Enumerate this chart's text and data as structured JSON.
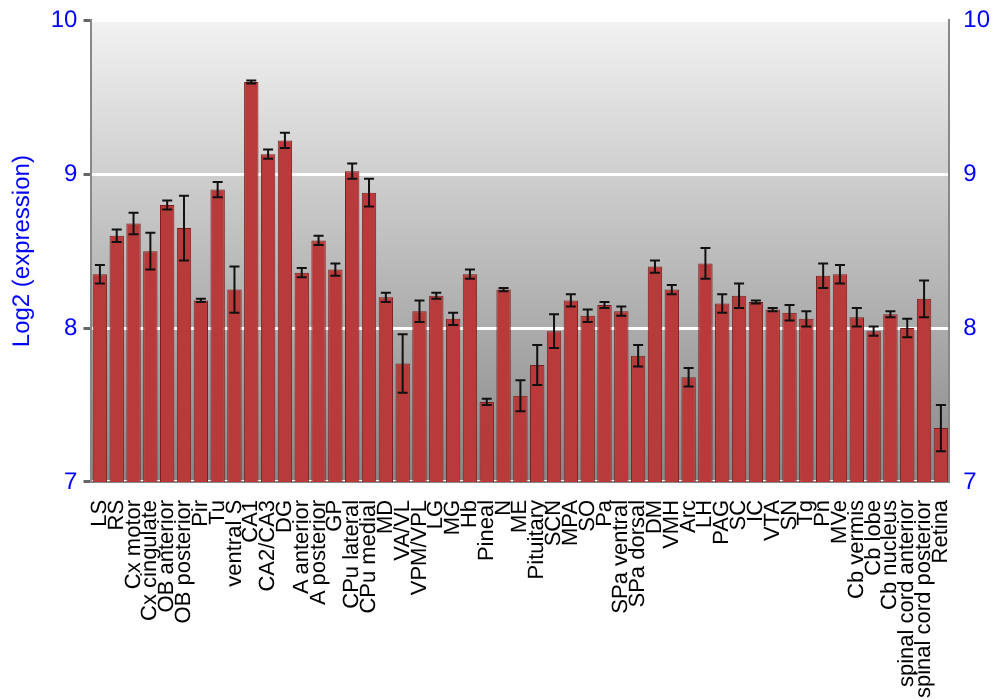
{
  "chart_data": {
    "type": "bar",
    "ylabel": "Log2 (expression)",
    "categories": [
      "LS",
      "RS",
      "Cx motor",
      "Cx cingulate",
      "OB anterior",
      "OB posterior",
      "Pir",
      "Tu",
      "ventral S",
      "CA1",
      "CA2/CA3",
      "DG",
      "A anterior",
      "A posterior",
      "GP",
      "CPu lateral",
      "CPu medial",
      "MD",
      "VA/VL",
      "VPM/VPL",
      "LG",
      "MG",
      "Hb",
      "Pineal",
      "N",
      "ME",
      "Pituitary",
      "SCN",
      "MPA",
      "SO",
      "Pa",
      "SPa ventral",
      "SPa dorsal",
      "DM",
      "VMH",
      "Arc",
      "LH",
      "PAG",
      "SC",
      "IC",
      "VTA",
      "SN",
      "Tg",
      "Pn",
      "MVe",
      "Cb vermis",
      "Cb lobe",
      "Cb nucleus",
      "spinal cord anterior",
      "spinal cord posterior",
      "Retina"
    ],
    "values": [
      8.35,
      8.6,
      8.68,
      8.5,
      8.8,
      8.65,
      8.18,
      8.9,
      8.25,
      9.6,
      9.13,
      9.22,
      8.36,
      8.57,
      8.38,
      9.02,
      8.88,
      8.2,
      7.77,
      8.11,
      8.21,
      8.06,
      8.35,
      7.52,
      8.25,
      7.56,
      7.76,
      7.98,
      8.18,
      8.08,
      8.15,
      8.11,
      7.82,
      8.4,
      8.25,
      7.68,
      8.42,
      8.16,
      8.21,
      8.17,
      8.12,
      8.1,
      8.06,
      8.34,
      8.35,
      8.07,
      7.98,
      8.09,
      8.0,
      8.19,
      7.35
    ],
    "errors": [
      0.06,
      0.04,
      0.07,
      0.12,
      0.03,
      0.21,
      0.01,
      0.05,
      0.15,
      0.01,
      0.03,
      0.05,
      0.03,
      0.03,
      0.04,
      0.05,
      0.09,
      0.03,
      0.19,
      0.07,
      0.02,
      0.04,
      0.03,
      0.02,
      0.01,
      0.1,
      0.13,
      0.11,
      0.04,
      0.04,
      0.02,
      0.03,
      0.07,
      0.04,
      0.03,
      0.06,
      0.1,
      0.06,
      0.08,
      0.01,
      0.01,
      0.05,
      0.05,
      0.08,
      0.06,
      0.06,
      0.03,
      0.02,
      0.06,
      0.12,
      0.15
    ],
    "color": "#b83a3a",
    "ylim": [
      7,
      10
    ],
    "yticks": [
      7,
      8,
      9,
      10
    ],
    "y2lim": [
      7,
      10
    ],
    "y2ticks": [
      7,
      8,
      9,
      10
    ],
    "grid": "y",
    "legend": false
  }
}
